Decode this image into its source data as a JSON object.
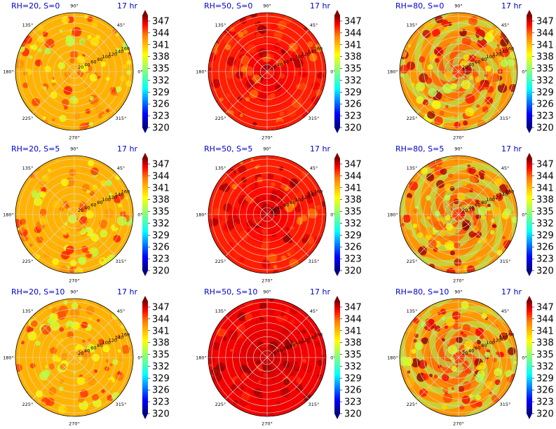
{
  "colors": {
    "title": "#0000cc",
    "colormap": [
      "#00007f",
      "#0000ff",
      "#007fff",
      "#00ffff",
      "#7fff7f",
      "#ffff00",
      "#ff7f00",
      "#ff0000",
      "#7f0000"
    ]
  },
  "chart_data": {
    "type": "polar-contour-grid",
    "time_label": "17 hr",
    "colorbar_ticks": [
      "347",
      "344",
      "341",
      "338",
      "335",
      "332",
      "329",
      "326",
      "323",
      "320"
    ],
    "colorbar_range": [
      320,
      350
    ],
    "angle_labels": [
      "0°",
      "45°",
      "90°",
      "135°",
      "180°",
      "225°",
      "270°",
      "315°"
    ],
    "radial_labels": [
      "20",
      "40",
      "60",
      "80",
      "100",
      "120",
      "140",
      "160"
    ],
    "panels": [
      {
        "title": "RH=20, S=0",
        "mean": 341,
        "spread": 5,
        "pattern": "speckle"
      },
      {
        "title": "RH=50, S=0",
        "mean": 346,
        "spread": 4,
        "pattern": "rings"
      },
      {
        "title": "RH=80, S=0",
        "mean": 343,
        "spread": 7,
        "pattern": "spiral"
      },
      {
        "title": "RH=20, S=5",
        "mean": 341,
        "spread": 5,
        "pattern": "speckle"
      },
      {
        "title": "RH=50, S=5",
        "mean": 346,
        "spread": 4,
        "pattern": "rings"
      },
      {
        "title": "RH=80, S=5",
        "mean": 343,
        "spread": 7,
        "pattern": "spiral"
      },
      {
        "title": "RH=20, S=10",
        "mean": 341,
        "spread": 5,
        "pattern": "speckle"
      },
      {
        "title": "RH=50, S=10",
        "mean": 347,
        "spread": 3,
        "pattern": "rings"
      },
      {
        "title": "RH=80, S=10",
        "mean": 343,
        "spread": 7,
        "pattern": "spiral"
      }
    ]
  }
}
